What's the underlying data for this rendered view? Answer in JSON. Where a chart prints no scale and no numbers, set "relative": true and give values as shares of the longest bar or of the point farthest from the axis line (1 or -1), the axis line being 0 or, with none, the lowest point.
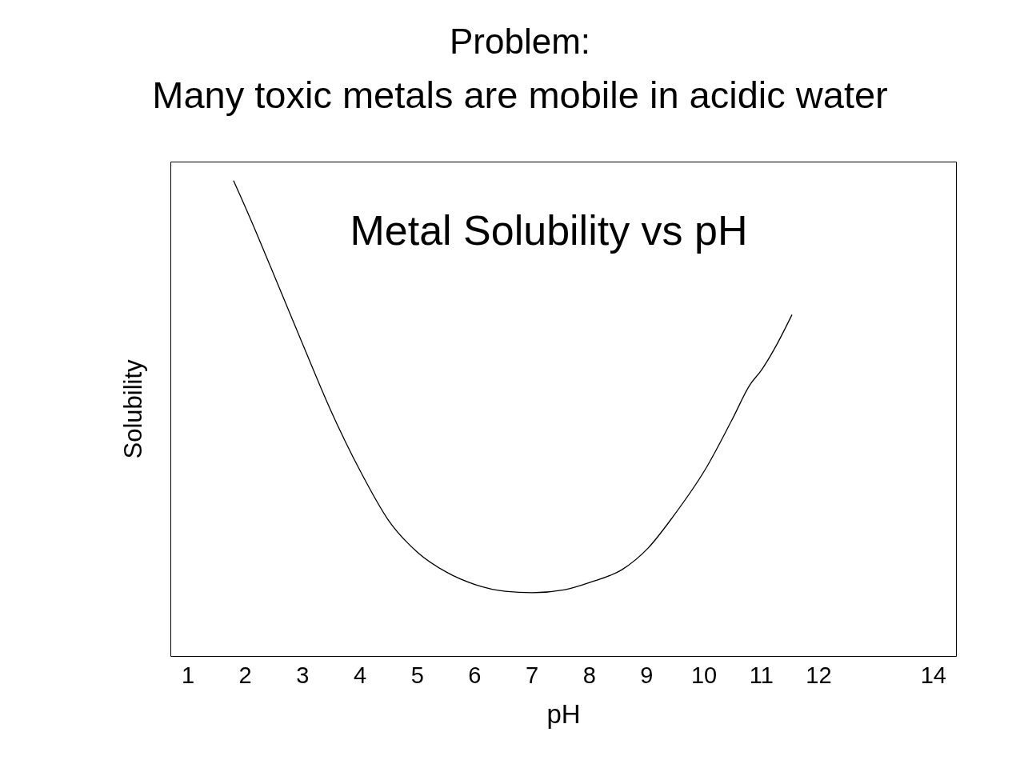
{
  "chart_data": {
    "type": "line",
    "title": "Problem:",
    "subtitle": "Many toxic metals are mobile in acidic water",
    "xlabel": "pH",
    "ylabel": "Solubility",
    "relative": true,
    "grid": false,
    "marker": "none",
    "line_style": "solid",
    "annotations": [
      "Metal Solubility vs pH"
    ],
    "xlim": [
      0.7,
      14.4
    ],
    "xticks": [
      1,
      2,
      3,
      4,
      5,
      6,
      7,
      8,
      9,
      10,
      11,
      12,
      14
    ],
    "x": [
      1.8,
      2.08,
      2.46,
      3.01,
      3.48,
      4.02,
      4.5,
      5.01,
      5.52,
      6.02,
      6.54,
      7.01,
      7.56,
      8.02,
      8.58,
      9.03,
      9.47,
      10.04,
      10.49,
      10.81,
      11.01,
      11.26,
      11.54
    ],
    "series": [
      {
        "color": "#000000",
        "values": [
          1.0,
          0.924,
          0.815,
          0.655,
          0.521,
          0.387,
          0.286,
          0.218,
          0.176,
          0.15,
          0.136,
          0.133,
          0.139,
          0.155,
          0.182,
          0.227,
          0.294,
          0.395,
          0.496,
          0.571,
          0.602,
          0.652,
          0.718
        ]
      }
    ]
  }
}
